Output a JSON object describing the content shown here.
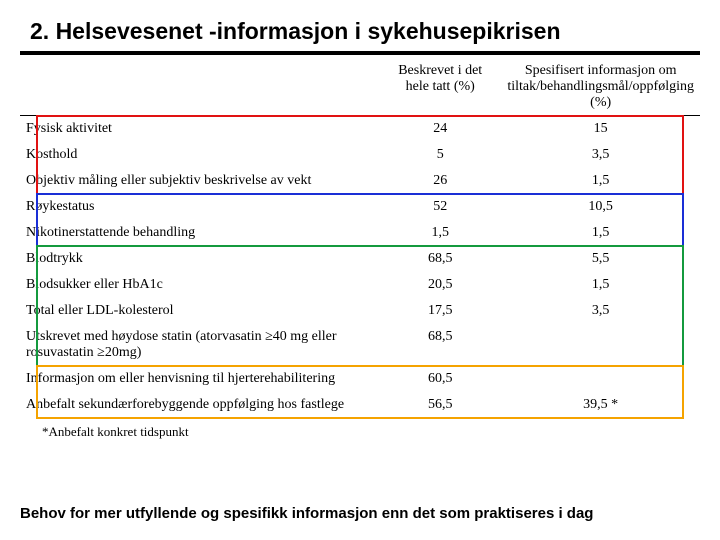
{
  "title": "2. Helsevesenet -informasjon i sykehusepikrisen",
  "columns": {
    "lead": "",
    "c1": "Beskrevet i det hele tatt (%)",
    "c2": "Spesifisert informasjon om tiltak/behandlingsmål/oppfølging (%)"
  },
  "groups": [
    {
      "color": "red",
      "rows": [
        {
          "label": "Fysisk aktivitet",
          "c1": "24",
          "c2": "15"
        },
        {
          "label": "Kosthold",
          "c1": "5",
          "c2": "3,5"
        },
        {
          "label": "Objektiv måling eller subjektiv beskrivelse av vekt",
          "c1": "26",
          "c2": "1,5"
        }
      ]
    },
    {
      "color": "blue",
      "rows": [
        {
          "label": "Røykestatus",
          "c1": "52",
          "c2": "10,5"
        },
        {
          "label": "Nikotinerstattende behandling",
          "c1": "1,5",
          "c2": "1,5"
        }
      ]
    },
    {
      "color": "green",
      "rows": [
        {
          "label": "Blodtrykk",
          "c1": "68,5",
          "c2": "5,5"
        },
        {
          "label": "Blodsukker eller HbA1c",
          "c1": "20,5",
          "c2": "1,5"
        },
        {
          "label": "Total eller LDL-kolesterol",
          "c1": "17,5",
          "c2": "3,5"
        },
        {
          "label": "Utskrevet med høydose statin (atorvasatin ≥40 mg eller rosuvastatin ≥20mg)",
          "c1": "68,5",
          "c2": ""
        }
      ]
    },
    {
      "color": "orange",
      "rows": [
        {
          "label": "Informasjon om eller henvisning til hjerterehabilitering",
          "c1": "60,5",
          "c2": ""
        },
        {
          "label": "Anbefalt sekundærforebyggende oppfølging hos fastlege",
          "c1": "56,5",
          "c2": "39,5 *"
        }
      ]
    }
  ],
  "footnote": "*Anbefalt konkret tidspunkt",
  "bottom_text": "Behov for mer utfyllende og spesifikk informasjon enn det som praktiseres i dag",
  "box_colors": {
    "red": "#e11212",
    "blue": "#1a2fd6",
    "green": "#149a3e",
    "orange": "#f5a300"
  }
}
